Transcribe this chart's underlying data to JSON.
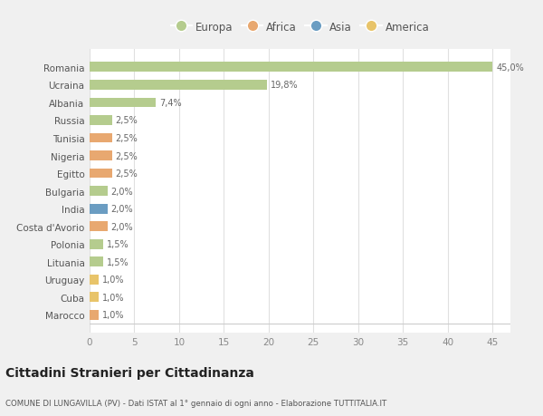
{
  "categories": [
    "Marocco",
    "Cuba",
    "Uruguay",
    "Lituania",
    "Polonia",
    "Costa d'Avorio",
    "India",
    "Bulgaria",
    "Egitto",
    "Nigeria",
    "Tunisia",
    "Russia",
    "Albania",
    "Ucraina",
    "Romania"
  ],
  "values": [
    1.0,
    1.0,
    1.0,
    1.5,
    1.5,
    2.0,
    2.0,
    2.0,
    2.5,
    2.5,
    2.5,
    2.5,
    7.4,
    19.8,
    45.0
  ],
  "labels": [
    "1,0%",
    "1,0%",
    "1,0%",
    "1,5%",
    "1,5%",
    "2,0%",
    "2,0%",
    "2,0%",
    "2,5%",
    "2,5%",
    "2,5%",
    "2,5%",
    "7,4%",
    "19,8%",
    "45,0%"
  ],
  "colors": [
    "#e8a870",
    "#e8c46a",
    "#e8c46a",
    "#b5cc8e",
    "#b5cc8e",
    "#e8a870",
    "#6b9dc2",
    "#b5cc8e",
    "#e8a870",
    "#e8a870",
    "#e8a870",
    "#b5cc8e",
    "#b5cc8e",
    "#b5cc8e",
    "#b5cc8e"
  ],
  "legend_labels": [
    "Europa",
    "Africa",
    "Asia",
    "America"
  ],
  "legend_colors": [
    "#b5cc8e",
    "#e8a870",
    "#6b9dc2",
    "#e8c46a"
  ],
  "title": "Cittadini Stranieri per Cittadinanza",
  "subtitle": "COMUNE DI LUNGAVILLA (PV) - Dati ISTAT al 1° gennaio di ogni anno - Elaborazione TUTTITALIA.IT",
  "xlim": [
    0,
    47
  ],
  "xticks": [
    0,
    5,
    10,
    15,
    20,
    25,
    30,
    35,
    40,
    45
  ],
  "bg_color": "#f0f0f0",
  "plot_bg_color": "#ffffff",
  "grid_color": "#e0e0e0",
  "text_color": "#555555",
  "label_color": "#666666"
}
